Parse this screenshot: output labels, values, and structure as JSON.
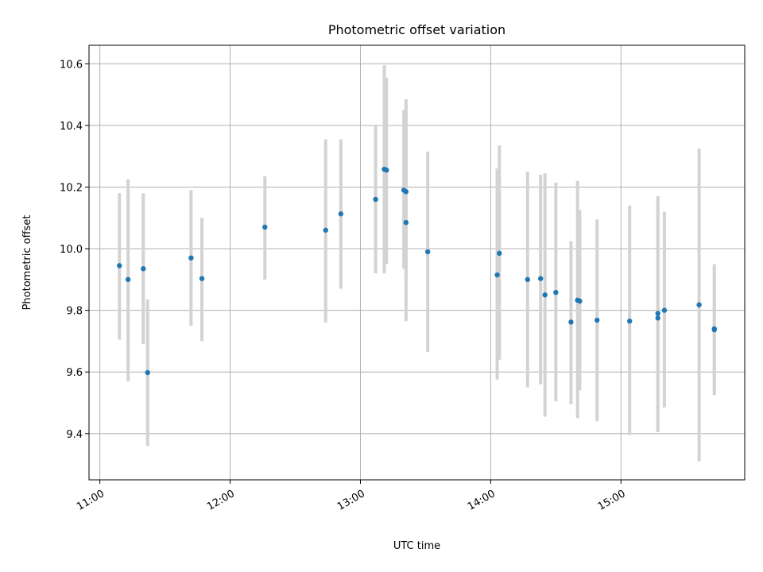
{
  "chart_data": {
    "type": "scatter",
    "title": "Photometric offset variation",
    "xlabel": "UTC time",
    "ylabel": "Photometric offset",
    "x_ticks": [
      "11:00",
      "12:00",
      "13:00",
      "14:00",
      "15:00"
    ],
    "y_ticks": [
      "9.4",
      "9.6",
      "9.8",
      "10.0",
      "10.2",
      "10.4",
      "10.6"
    ],
    "xlim": [
      "10:55",
      "15:57"
    ],
    "ylim": [
      9.25,
      10.66
    ],
    "grid": true,
    "marker_color": "#1f77b4",
    "errorbar_color": "#d3d3d3",
    "points": [
      {
        "x": "11:09",
        "y": 9.945,
        "ylo": 9.705,
        "yhi": 10.18
      },
      {
        "x": "11:13",
        "y": 9.9,
        "ylo": 9.57,
        "yhi": 10.225
      },
      {
        "x": "11:20",
        "y": 9.935,
        "ylo": 9.69,
        "yhi": 10.18
      },
      {
        "x": "11:22",
        "y": 9.598,
        "ylo": 9.36,
        "yhi": 9.835
      },
      {
        "x": "11:42",
        "y": 9.97,
        "ylo": 9.75,
        "yhi": 10.19
      },
      {
        "x": "11:47",
        "y": 9.903,
        "ylo": 9.7,
        "yhi": 10.1
      },
      {
        "x": "12:16",
        "y": 10.07,
        "ylo": 9.9,
        "yhi": 10.235
      },
      {
        "x": "12:44",
        "y": 10.06,
        "ylo": 9.76,
        "yhi": 10.355
      },
      {
        "x": "12:51",
        "y": 10.113,
        "ylo": 9.87,
        "yhi": 10.355
      },
      {
        "x": "13:07",
        "y": 10.16,
        "ylo": 9.92,
        "yhi": 10.4
      },
      {
        "x": "13:11",
        "y": 10.258,
        "ylo": 9.92,
        "yhi": 10.595
      },
      {
        "x": "13:12",
        "y": 10.255,
        "ylo": 9.95,
        "yhi": 10.555
      },
      {
        "x": "13:20",
        "y": 10.19,
        "ylo": 9.935,
        "yhi": 10.45
      },
      {
        "x": "13:21",
        "y": 10.185,
        "ylo": 9.885,
        "yhi": 10.46
      },
      {
        "x": "13:21",
        "y": 10.085,
        "ylo": 9.765,
        "yhi": 10.485
      },
      {
        "x": "13:31",
        "y": 9.99,
        "ylo": 9.665,
        "yhi": 10.315
      },
      {
        "x": "14:03",
        "y": 9.915,
        "ylo": 9.575,
        "yhi": 10.26
      },
      {
        "x": "14:04",
        "y": 9.985,
        "ylo": 9.64,
        "yhi": 10.335
      },
      {
        "x": "14:17",
        "y": 9.9,
        "ylo": 9.55,
        "yhi": 10.25
      },
      {
        "x": "14:23",
        "y": 9.903,
        "ylo": 9.56,
        "yhi": 10.24
      },
      {
        "x": "14:25",
        "y": 9.85,
        "ylo": 9.455,
        "yhi": 10.245
      },
      {
        "x": "14:30",
        "y": 9.858,
        "ylo": 9.505,
        "yhi": 10.215
      },
      {
        "x": "14:37",
        "y": 9.762,
        "ylo": 9.495,
        "yhi": 10.025
      },
      {
        "x": "14:40",
        "y": 9.833,
        "ylo": 9.45,
        "yhi": 10.22
      },
      {
        "x": "14:41",
        "y": 9.83,
        "ylo": 9.54,
        "yhi": 10.125
      },
      {
        "x": "14:49",
        "y": 9.768,
        "ylo": 9.44,
        "yhi": 10.095
      },
      {
        "x": "15:04",
        "y": 9.765,
        "ylo": 9.395,
        "yhi": 10.14
      },
      {
        "x": "15:17",
        "y": 9.775,
        "ylo": 9.405,
        "yhi": 10.17
      },
      {
        "x": "15:17",
        "y": 9.79,
        "ylo": 9.41,
        "yhi": 10.17
      },
      {
        "x": "15:20",
        "y": 9.8,
        "ylo": 9.485,
        "yhi": 10.12
      },
      {
        "x": "15:36",
        "y": 9.818,
        "ylo": 9.31,
        "yhi": 10.325
      },
      {
        "x": "15:43",
        "y": 9.74,
        "ylo": 9.525,
        "yhi": 9.95
      },
      {
        "x": "15:43",
        "y": 9.737,
        "ylo": 9.54,
        "yhi": 9.94
      }
    ]
  }
}
